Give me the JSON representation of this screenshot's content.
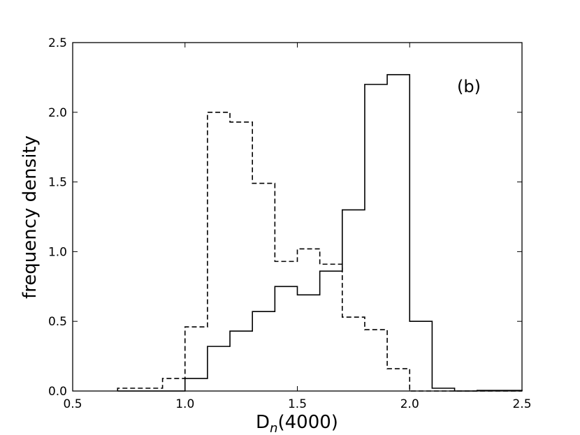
{
  "chart_data": {
    "type": "histogram",
    "xlabel": "D",
    "xlabel_sub": "n",
    "xlabel_rest": "(4000)",
    "ylabel": "frequency density",
    "annotation": "(b)",
    "xlim": [
      0.5,
      2.5
    ],
    "ylim": [
      0.0,
      2.5
    ],
    "xticks": [
      0.5,
      1.0,
      1.5,
      2.0,
      2.5
    ],
    "yticks": [
      0.0,
      0.5,
      1.0,
      1.5,
      2.0,
      2.5
    ],
    "xtick_labels": [
      "0.5",
      "1.0",
      "1.5",
      "2.0",
      "2.5"
    ],
    "ytick_labels": [
      "0.0",
      "0.5",
      "1.0",
      "1.5",
      "2.0",
      "2.5"
    ],
    "grid": false,
    "bin_edges": [
      0.7,
      0.8,
      0.9,
      1.0,
      1.1,
      1.2,
      1.3,
      1.4,
      1.5,
      1.6,
      1.7,
      1.8,
      1.9,
      2.0,
      2.1,
      2.2,
      2.3,
      2.4,
      2.5
    ],
    "series": [
      {
        "style": "solid",
        "color": "#000000",
        "values": [
          0.0,
          0.0,
          0.0,
          0.09,
          0.32,
          0.43,
          0.57,
          0.75,
          0.69,
          0.86,
          1.3,
          2.2,
          2.27,
          0.5,
          0.02,
          0.0,
          0.004,
          0.004
        ]
      },
      {
        "style": "dashed",
        "color": "#000000",
        "values": [
          0.02,
          0.02,
          0.09,
          0.46,
          2.0,
          1.93,
          1.49,
          0.93,
          1.02,
          0.91,
          0.53,
          0.44,
          0.16,
          0.0,
          0.0,
          0.0,
          0.0,
          0.0
        ]
      }
    ]
  }
}
